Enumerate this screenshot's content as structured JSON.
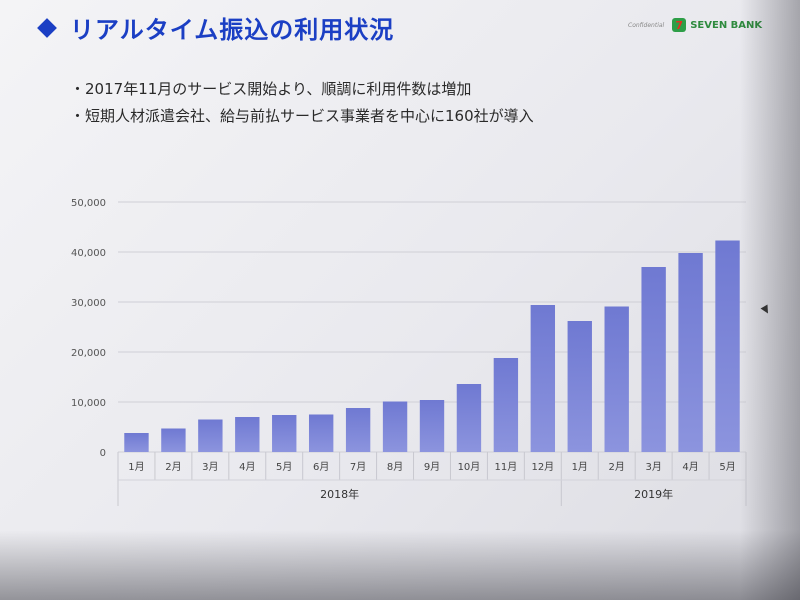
{
  "header": {
    "title": "リアルタイム振込の利用状況",
    "confidential": "Confidential",
    "logo_mark": "7",
    "logo_text": "SEVEN BANK"
  },
  "bullets": [
    "2017年11月のサービス開始より、順調に利用件数は増加",
    "短期人材派遣会社、給与前払サービス事業者を中心に160社が導入"
  ],
  "chart_data": {
    "type": "bar",
    "categories": [
      "1月",
      "2月",
      "3月",
      "4月",
      "5月",
      "6月",
      "7月",
      "8月",
      "9月",
      "10月",
      "11月",
      "12月",
      "1月",
      "2月",
      "3月",
      "4月",
      "5月"
    ],
    "groups": [
      {
        "label": "2018年",
        "from": 0,
        "to": 11
      },
      {
        "label": "2019年",
        "from": 12,
        "to": 16
      }
    ],
    "values": [
      3800,
      4700,
      6500,
      7000,
      7400,
      7500,
      8800,
      10100,
      10400,
      13600,
      18800,
      29400,
      26200,
      29100,
      37000,
      39800,
      42300
    ],
    "yticks": [
      "0",
      "10,000",
      "20,000",
      "30,000",
      "40,000",
      "50,000"
    ],
    "ylim": [
      0,
      50000
    ],
    "grid": true,
    "bar_color": "#8c94de",
    "bar_color_top": "#6f79d2"
  }
}
